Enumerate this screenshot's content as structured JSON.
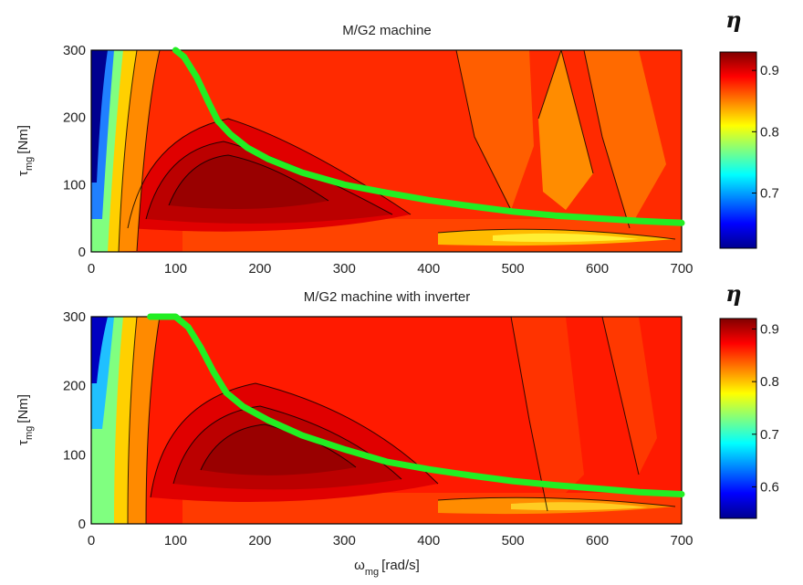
{
  "figure": {
    "x_axis_label_symbol": "ω",
    "x_axis_label_sub": "mg",
    "x_axis_label_unit": "[rad/s]"
  },
  "chart_data": [
    {
      "type": "heatmap",
      "title": "M/G2 machine",
      "ylabel_symbol": "τ",
      "ylabel_sub": "mg",
      "ylabel_unit": "[Nm]",
      "xlim": [
        0,
        700
      ],
      "ylim": [
        0,
        300
      ],
      "x_ticks": [
        "0",
        "100",
        "200",
        "300",
        "400",
        "500",
        "600",
        "700"
      ],
      "y_ticks": [
        "0",
        "100",
        "200",
        "300"
      ],
      "colorbar": {
        "label": "η",
        "range": [
          0.61,
          0.93
        ],
        "ticks": [
          "0.7",
          "0.8",
          "0.9"
        ],
        "tick_values": [
          0.7,
          0.8,
          0.9
        ]
      },
      "peak_efficiency_region": {
        "omega_center": 215,
        "tau_center": 105,
        "eta_peak": 0.93
      },
      "max_torque_curve": {
        "color": "#22ee22",
        "omega": [
          100,
          110,
          125,
          140,
          150,
          165,
          185,
          210,
          250,
          300,
          350,
          400,
          450,
          500,
          550,
          600,
          650,
          700
        ],
        "tau": [
          300,
          290,
          260,
          220,
          195,
          175,
          155,
          138,
          118,
          100,
          88,
          77,
          68,
          60,
          54,
          50,
          46,
          43
        ]
      }
    },
    {
      "type": "heatmap",
      "title": "M/G2 machine with inverter",
      "ylabel_symbol": "τ",
      "ylabel_sub": "mg",
      "ylabel_unit": "[Nm]",
      "xlim": [
        0,
        700
      ],
      "ylim": [
        0,
        300
      ],
      "x_ticks": [
        "0",
        "100",
        "200",
        "300",
        "400",
        "500",
        "600",
        "700"
      ],
      "y_ticks": [
        "0",
        "100",
        "200",
        "300"
      ],
      "colorbar": {
        "label": "η",
        "range": [
          0.54,
          0.92
        ],
        "ticks": [
          "0.6",
          "0.7",
          "0.8",
          "0.9"
        ],
        "tick_values": [
          0.6,
          0.7,
          0.8,
          0.9
        ]
      },
      "peak_efficiency_region": {
        "omega_center": 245,
        "tau_center": 100,
        "eta_peak": 0.92
      },
      "max_torque_curve": {
        "color": "#22ee22",
        "omega": [
          70,
          100,
          115,
          130,
          145,
          160,
          180,
          210,
          250,
          300,
          350,
          400,
          450,
          500,
          550,
          600,
          650,
          700
        ],
        "tau": [
          300,
          300,
          285,
          255,
          220,
          190,
          170,
          150,
          128,
          108,
          90,
          79,
          70,
          62,
          56,
          51,
          46,
          43
        ]
      }
    }
  ]
}
